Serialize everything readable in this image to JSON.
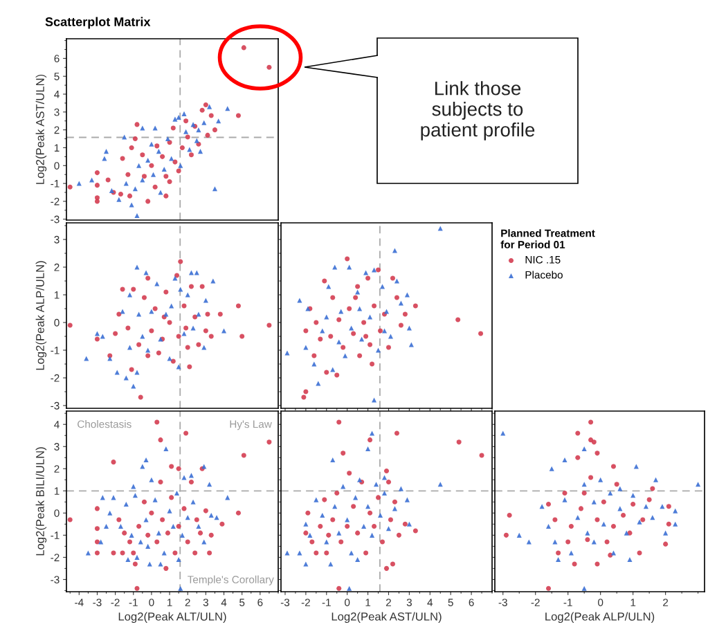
{
  "chart_data": [
    {
      "type": "scatter",
      "title": "Scatterplot Matrix",
      "ylabel": "Log2(Peak AST/ULN)",
      "xlim": [
        -4.7,
        7.0
      ],
      "ylim": [
        -3.05,
        7.1
      ],
      "yticks": [
        -3,
        -2,
        -1,
        0,
        1,
        2,
        3,
        4,
        5,
        6
      ],
      "tick_labels": "y",
      "ref_lines": [
        {
          "axis": "x",
          "value": 1.58,
          "color": "#aaaaaa",
          "line_style": "dashed"
        },
        {
          "axis": "y",
          "value": 1.58,
          "color": "#aaaaaa",
          "line_style": "dashed"
        }
      ],
      "annotations": [
        "Link those\nsubjects to\npatient profile"
      ],
      "series": [
        {
          "color": "#d43d51",
          "marker": "circle",
          "x": [
            5.1,
            6.5,
            4.8,
            -4.5,
            -3.0,
            -3.0,
            -3.0,
            -3.0,
            -2.4,
            -2.1,
            -1.7,
            -1.2,
            -0.2,
            0.8,
            -1.6,
            -1.1,
            -0.9,
            -0.8,
            -0.4,
            0,
            0.3,
            0.6,
            0.8,
            1,
            1.2,
            1.3,
            1.5,
            1.7,
            1.9,
            2.0,
            2.2,
            2.4,
            2.6,
            2.8,
            3.0,
            3.1,
            3.3,
            3.5,
            -0.5,
            0.2,
            1.0,
            -1.3
          ],
          "values": [
            6.6,
            5.5,
            2.8,
            -1.2,
            -0.4,
            -1.1,
            -1.8,
            -2.0,
            -0.8,
            -1.5,
            -1.6,
            -1.7,
            -2.0,
            -1.7,
            0.4,
            1.0,
            1.5,
            2.3,
            -0.6,
            0,
            1.1,
            0.5,
            -0.6,
            1.3,
            2.1,
            0.2,
            -0.3,
            1.0,
            2.5,
            1.6,
            0.6,
            2.2,
            1.2,
            3.1,
            3.4,
            1.7,
            2.8,
            2.0,
            0.6,
            -1.2,
            -0.9,
            -0.5
          ]
        },
        {
          "color": "#3b6fd4",
          "marker": "triangle",
          "x": [
            -4.0,
            -3.3,
            -2.6,
            -2.5,
            -2.2,
            -1.8,
            -1.5,
            -1.1,
            -0.8,
            -0.5,
            0.2,
            -0.9,
            -0.5,
            -0.2,
            0.1,
            0.4,
            0.7,
            0.9,
            1.1,
            1.3,
            1.5,
            1.8,
            1.9,
            2.1,
            2.3,
            2.5,
            2.7,
            2.9,
            3.2,
            3.7,
            4.2,
            3.5,
            -1.4,
            -0.7,
            0.5,
            1.6,
            2.6,
            0.0
          ],
          "values": [
            -1.0,
            -0.8,
            0.4,
            0.8,
            -1.4,
            -1.9,
            1.6,
            -2.2,
            -2.8,
            2.1,
            2.1,
            -1.3,
            -0.8,
            0.3,
            -0.5,
            0.8,
            -0.2,
            1.5,
            0.4,
            2.6,
            2.7,
            2.9,
            1.9,
            0.9,
            2.3,
            1.4,
            0.8,
            2.4,
            3.3,
            2.5,
            3.2,
            -1.3,
            -1.0,
            0.0,
            -1.5,
            0.0,
            2.0,
            1.2
          ]
        }
      ]
    },
    {
      "type": "scatter",
      "ylabel": "Log2(Peak ALP/ULN)",
      "xlim": [
        -4.7,
        7.0
      ],
      "ylim": [
        -3.1,
        3.6
      ],
      "yticks": [
        -3,
        -2,
        -1,
        0,
        1,
        2,
        3
      ],
      "tick_labels": "y",
      "ref_lines": [
        {
          "axis": "x",
          "value": 1.58,
          "color": "#aaaaaa",
          "line_style": "dashed"
        }
      ],
      "series": [
        {
          "color": "#d43d51",
          "marker": "circle",
          "x": [
            -4.5,
            -3.0,
            -2.3,
            -2.0,
            -1.6,
            -1.0,
            -1.3,
            -1.1,
            -0.7,
            -0.4,
            -0.2,
            0.0,
            -0.6,
            0.2,
            0.4,
            0.6,
            0.8,
            1.0,
            1.2,
            1.4,
            1.6,
            1.5,
            1.8,
            2.0,
            2.1,
            2.2,
            2.4,
            2.6,
            2.8,
            3.0,
            3.1,
            3.3,
            3.8,
            4.8,
            5.0,
            6.5,
            -0.2,
            0.7,
            1.9,
            -1.8
          ],
          "values": [
            -0.1,
            -0.6,
            -1.2,
            -0.4,
            1.2,
            1.2,
            -0.2,
            -1.7,
            -0.8,
            0.9,
            1.6,
            -0.3,
            -2.7,
            0.5,
            -1.1,
            -0.6,
            1.1,
            0.0,
            -1.4,
            1.7,
            2.2,
            -0.5,
            0.6,
            -0.9,
            -1.6,
            1.3,
            0.2,
            -0.8,
            1.3,
            -0.3,
            0.3,
            -0.5,
            0.3,
            0.6,
            -0.5,
            -0.1,
            -1.2,
            0.2,
            -0.2,
            0.3
          ]
        },
        {
          "color": "#3b6fd4",
          "marker": "triangle",
          "x": [
            -3.6,
            -3.0,
            -2.7,
            -2.3,
            -1.9,
            -1.6,
            -1.4,
            -1.2,
            -0.8,
            -0.3,
            -0.8,
            -1.0,
            -0.5,
            -0.2,
            0.0,
            0.3,
            0.5,
            0.8,
            1.0,
            1.3,
            1.6,
            1.8,
            2.0,
            2.2,
            2.5,
            2.3,
            2.6,
            2.9,
            3.0,
            3.4,
            4.0,
            1.5,
            -0.7,
            1.1,
            -1.2
          ],
          "values": [
            -1.3,
            -0.4,
            -0.5,
            -1.3,
            -1.8,
            0.4,
            -2.0,
            1.0,
            2.0,
            1.8,
            -1.8,
            -2.3,
            -0.5,
            -1.0,
            0.4,
            1.4,
            -0.6,
            0.3,
            -1.3,
            1.6,
            1.2,
            -0.4,
            1.0,
            1.8,
            1.8,
            -0.2,
            0.3,
            -0.9,
            0.8,
            1.5,
            -0.3,
            -1.6,
            0.3,
            0.6,
            -0.9
          ]
        }
      ]
    },
    {
      "type": "scatter",
      "xlim": [
        -3.2,
        7.0
      ],
      "ylim": [
        -3.1,
        3.6
      ],
      "xticks": [
        -3,
        -2,
        -1,
        0,
        1,
        2,
        3,
        4,
        5,
        6
      ],
      "yticks": [
        -3,
        -2,
        -1,
        0,
        1,
        2,
        3
      ],
      "tick_labels": false,
      "legend": "right",
      "legend_title": "Planned Treatment\nfor Period 01",
      "ref_lines": [
        {
          "axis": "x",
          "value": 1.58,
          "color": "#aaaaaa",
          "line_style": "dashed"
        }
      ],
      "series": [
        {
          "name": "NIC .15",
          "color": "#d43d51",
          "marker": "circle",
          "x": [
            5.35,
            6.45,
            -2.1,
            -2.0,
            -2.0,
            -1.8,
            -1.6,
            -1.3,
            -1.1,
            -1.0,
            -0.7,
            -0.5,
            -0.4,
            -0.2,
            0.0,
            0.1,
            0.3,
            0.5,
            0.6,
            0.8,
            1.0,
            1.1,
            1.3,
            1.5,
            1.6,
            1.8,
            2.0,
            2.2,
            2.4,
            2.6,
            2.8,
            3.3,
            -0.8,
            0.4,
            1.2,
            -1.5,
            0.9
          ],
          "values": [
            0.1,
            -0.4,
            -2.7,
            -2.5,
            -0.3,
            0.5,
            -1.2,
            -0.6,
            1.5,
            -1.8,
            0.9,
            -1.9,
            0.1,
            -0.9,
            2.3,
            0.5,
            -0.4,
            1.3,
            -1.2,
            0.0,
            1.6,
            -0.8,
            0.6,
            1.9,
            -0.3,
            0.3,
            -0.9,
            1.6,
            0.9,
            -0.1,
            0.3,
            0.6,
            -0.5,
            0.9,
            -1.5,
            0.0,
            -0.5
          ]
        },
        {
          "name": "Placebo",
          "color": "#3b6fd4",
          "marker": "triangle",
          "x": [
            4.5,
            2.3,
            1.3,
            -2.9,
            -2.3,
            -2.0,
            -1.9,
            -1.6,
            -1.4,
            -1.2,
            -0.9,
            -0.7,
            -0.6,
            -0.3,
            -0.1,
            0.1,
            0.2,
            0.5,
            0.7,
            0.9,
            1.1,
            1.3,
            1.5,
            1.7,
            1.9,
            2.1,
            2.4,
            2.6,
            2.9,
            3.0,
            3.1,
            -0.4,
            0.6,
            1.8,
            -1.0
          ],
          "values": [
            3.4,
            2.6,
            -2.8,
            -1.1,
            0.8,
            -0.9,
            0.5,
            -1.5,
            -2.2,
            -0.3,
            1.3,
            -1.7,
            2.0,
            0.4,
            -1.2,
            2.0,
            -0.2,
            1.1,
            -0.6,
            1.8,
            0.2,
            1.9,
            -1.0,
            1.3,
            0.4,
            -0.5,
            1.5,
            0.7,
            1.0,
            -0.2,
            -0.8,
            -0.7,
            0.5,
            -0.3,
            0.2
          ]
        }
      ]
    },
    {
      "type": "scatter",
      "xlabel": "Log2(Peak ALT/ULN)",
      "ylabel": "Log2(Peak BILI/ULN)",
      "xlim": [
        -4.7,
        7.0
      ],
      "ylim": [
        -3.55,
        4.6
      ],
      "xticks": [
        -4,
        -3,
        -2,
        -1,
        0,
        1,
        2,
        3,
        4,
        5,
        6
      ],
      "yticks": [
        -3,
        -2,
        -1,
        0,
        1,
        2,
        3,
        4
      ],
      "ref_lines": [
        {
          "axis": "x",
          "value": 1.58,
          "color": "#aaaaaa",
          "line_style": "dashed"
        },
        {
          "axis": "y",
          "value": 1,
          "color": "#aaaaaa",
          "line_style": "dashed"
        }
      ],
      "annotations": [
        "Cholestasis",
        "Hy's Law",
        "Temple's Corollary"
      ],
      "series": [
        {
          "color": "#d43d51",
          "marker": "circle",
          "x": [
            0.3,
            0.5,
            1.9,
            -2.1,
            1.1,
            1.5,
            2.8,
            5.1,
            6.5,
            4.8,
            -4.5,
            -3.0,
            -3.0,
            -3.0,
            -3.0,
            -2.1,
            -0.9,
            0.8,
            -0.8,
            3.2,
            3.9,
            -1.8,
            -1.5,
            -1.2,
            -1.0,
            -0.7,
            -0.4,
            -0.2,
            0.0,
            0.3,
            0.5,
            0.6,
            0.9,
            1.1,
            1.3,
            1.5,
            1.8,
            2.0,
            2.2,
            2.5,
            2.7,
            3.0,
            3.3,
            -1.6,
            2.4
          ],
          "values": [
            4.1,
            3.3,
            3.6,
            2.3,
            2.1,
            2.0,
            2.0,
            2.6,
            3.2,
            0.0,
            -0.3,
            0.2,
            -0.7,
            -1.3,
            -1.8,
            -1.8,
            -2.3,
            -2.5,
            -3.4,
            -1.8,
            -0.5,
            -0.3,
            -0.9,
            -1.3,
            -1.8,
            -0.6,
            0.5,
            -1.0,
            0.0,
            -1.3,
            1.4,
            -0.3,
            -0.9,
            0.7,
            -1.8,
            -0.6,
            0.2,
            -1.3,
            1.4,
            -0.3,
            -0.9,
            0.1,
            -1.0,
            -1.8,
            -1.8
          ]
        },
        {
          "color": "#3b6fd4",
          "marker": "triangle",
          "x": [
            0.8,
            -0.3,
            -0.5,
            0.0,
            1.8,
            2.2,
            3.2,
            4.2,
            -2.7,
            -2.1,
            -2.3,
            -2.5,
            -3.5,
            -2.8,
            -1.3,
            -0.8,
            -0.1,
            0.5,
            1.5,
            1.6,
            2.9,
            -1.0,
            -1.7,
            -1.4,
            -1.1,
            -0.9,
            -0.6,
            -0.3,
            0.2,
            0.4,
            0.7,
            1.0,
            1.2,
            1.4,
            1.7,
            2.0,
            2.3,
            2.6,
            2.9,
            3.3,
            3.6,
            -0.2
          ],
          "values": [
            2.9,
            2.4,
            2.1,
            1.5,
            1.6,
            1.7,
            1.3,
            0.7,
            0.7,
            0.7,
            0.0,
            -0.6,
            -1.8,
            -1.3,
            -2.1,
            -2.0,
            -2.3,
            -2.3,
            -2.1,
            -3.4,
            2.1,
            1.2,
            -0.6,
            0.4,
            -1.0,
            0.8,
            -1.3,
            -0.3,
            0.6,
            -0.9,
            -1.8,
            0.1,
            -0.6,
            0.9,
            -1.0,
            -0.2,
            0.5,
            -0.6,
            -1.3,
            -0.1,
            -0.2,
            -1.5
          ]
        }
      ]
    },
    {
      "type": "scatter",
      "xlabel": "Log2(Peak AST/ULN)",
      "xlim": [
        -3.2,
        7.0
      ],
      "ylim": [
        -3.55,
        4.6
      ],
      "xticks": [
        -3,
        -2,
        -1,
        0,
        1,
        2,
        3,
        4,
        5,
        6
      ],
      "yticks": [
        -3,
        -2,
        -1,
        0,
        1,
        2,
        3,
        4
      ],
      "tick_labels": "x",
      "ref_lines": [
        {
          "axis": "x",
          "value": 1.58,
          "color": "#aaaaaa",
          "line_style": "dashed"
        },
        {
          "axis": "y",
          "value": 1,
          "color": "#aaaaaa",
          "line_style": "dashed"
        }
      ],
      "series": [
        {
          "color": "#d43d51",
          "marker": "circle",
          "x": [
            -0.4,
            2.4,
            1.1,
            5.4,
            6.5,
            -0.2,
            -0.4,
            1.9,
            2.2,
            -2.0,
            -1.9,
            -1.7,
            -1.5,
            -1.3,
            -1.1,
            -0.9,
            -0.7,
            -0.5,
            -0.3,
            0.0,
            0.1,
            0.3,
            0.5,
            0.7,
            0.9,
            1.1,
            1.3,
            1.5,
            1.7,
            1.9,
            2.1,
            2.3,
            2.5,
            2.8,
            3.3,
            2.0,
            -1.0
          ],
          "values": [
            4.1,
            3.6,
            3.3,
            3.2,
            2.6,
            2.7,
            -3.4,
            -2.5,
            -2.3,
            -0.9,
            0.0,
            -1.3,
            -1.8,
            -0.6,
            0.6,
            -1.0,
            -0.3,
            0.9,
            -1.3,
            -0.6,
            1.8,
            0.3,
            -0.9,
            1.4,
            -1.8,
            0.0,
            -0.6,
            0.7,
            -1.3,
            1.9,
            -0.3,
            0.5,
            -1.0,
            -0.5,
            -0.8,
            1.4,
            -1.8
          ]
        },
        {
          "color": "#3b6fd4",
          "marker": "triangle",
          "x": [
            1.2,
            1.0,
            -0.7,
            4.5,
            -2.9,
            0.1,
            -2.3,
            -2.0,
            -2.0,
            -1.8,
            -1.5,
            -1.2,
            -1.0,
            -0.8,
            -0.6,
            -0.4,
            -0.2,
            0.0,
            0.2,
            0.4,
            0.5,
            0.6,
            0.8,
            1.0,
            1.2,
            1.4,
            1.6,
            1.8,
            2.0,
            2.3,
            2.6,
            2.9,
            3.0,
            1.8
          ],
          "values": [
            3.6,
            2.9,
            2.4,
            1.3,
            -1.8,
            -3.4,
            -1.8,
            -2.3,
            -0.5,
            -1.0,
            0.6,
            -0.1,
            -1.3,
            -2.3,
            0.3,
            -0.9,
            1.2,
            -0.3,
            -1.8,
            0.7,
            -2.1,
            1.5,
            -0.6,
            0.3,
            -1.0,
            1.3,
            -0.1,
            0.9,
            -0.7,
            0.2,
            1.1,
            0.6,
            -0.5,
            1.6
          ]
        }
      ]
    },
    {
      "type": "scatter",
      "xlabel": "Log2(Peak ALP/ULN)",
      "xlim": [
        -3.25,
        3.2
      ],
      "ylim": [
        -3.55,
        4.6
      ],
      "xticks": [
        -3,
        -2,
        -1,
        0,
        1,
        2
      ],
      "yticks": [
        -3,
        -2,
        -1,
        0,
        1,
        2,
        3,
        4
      ],
      "tick_labels": "x",
      "ref_lines": [
        {
          "axis": "y",
          "value": 1,
          "color": "#aaaaaa",
          "line_style": "dashed"
        }
      ],
      "series": [
        {
          "color": "#d43d51",
          "marker": "circle",
          "x": [
            -0.3,
            -0.7,
            -0.3,
            -0.2,
            -0.1,
            -0.7,
            -2.8,
            -2.9,
            -1.6,
            2.1,
            2.1,
            2.0,
            -0.1,
            0.4,
            1.6,
            -1.6,
            -1.4,
            -1.3,
            -1.1,
            -0.9,
            -0.8,
            -0.6,
            -0.4,
            -0.3,
            -0.1,
            0.1,
            0.2,
            0.4,
            0.5,
            0.7,
            0.9,
            1.0,
            1.2,
            1.3,
            1.5,
            -1.0,
            0.3,
            -0.5
          ],
          "values": [
            4.1,
            3.6,
            3.3,
            3.2,
            2.7,
            2.5,
            -0.1,
            -1.0,
            -3.4,
            0.3,
            -0.5,
            -1.4,
            -2.3,
            2.1,
            1.1,
            0.4,
            -0.3,
            -1.8,
            0.9,
            -0.6,
            -2.3,
            0.2,
            -1.2,
            1.6,
            -0.3,
            0.5,
            -1.3,
            -0.6,
            1.3,
            -0.1,
            -0.9,
            0.4,
            -1.8,
            -0.3,
            0.6,
            -1.3,
            -1.9,
            0.9
          ]
        },
        {
          "color": "#3b6fd4",
          "marker": "triangle",
          "x": [
            -3.0,
            -0.5,
            -1.1,
            -1.5,
            3.0,
            -2.5,
            -2.2,
            -0.5,
            2.3,
            2.3,
            2.0,
            0.9,
            1.1,
            1.7,
            -1.8,
            -1.6,
            -1.4,
            -1.3,
            -1.1,
            -0.9,
            -0.7,
            -0.5,
            -0.4,
            -0.2,
            0.0,
            0.1,
            0.3,
            0.4,
            0.6,
            0.8,
            1.0,
            1.2,
            1.4,
            1.6,
            1.9,
            -0.2,
            0.6
          ],
          "values": [
            3.6,
            2.9,
            2.4,
            2.0,
            1.3,
            -1.0,
            -1.3,
            -3.4,
            0.1,
            -0.5,
            -0.9,
            -2.1,
            2.1,
            1.5,
            0.3,
            -0.6,
            -1.3,
            -2.1,
            0.6,
            -1.8,
            -0.2,
            1.3,
            -0.9,
            0.5,
            1.5,
            -0.5,
            0.9,
            -1.8,
            0.2,
            -0.9,
            0.8,
            -0.4,
            0.3,
            -0.2,
            0.3,
            -1.3,
            1.1
          ]
        }
      ]
    }
  ]
}
